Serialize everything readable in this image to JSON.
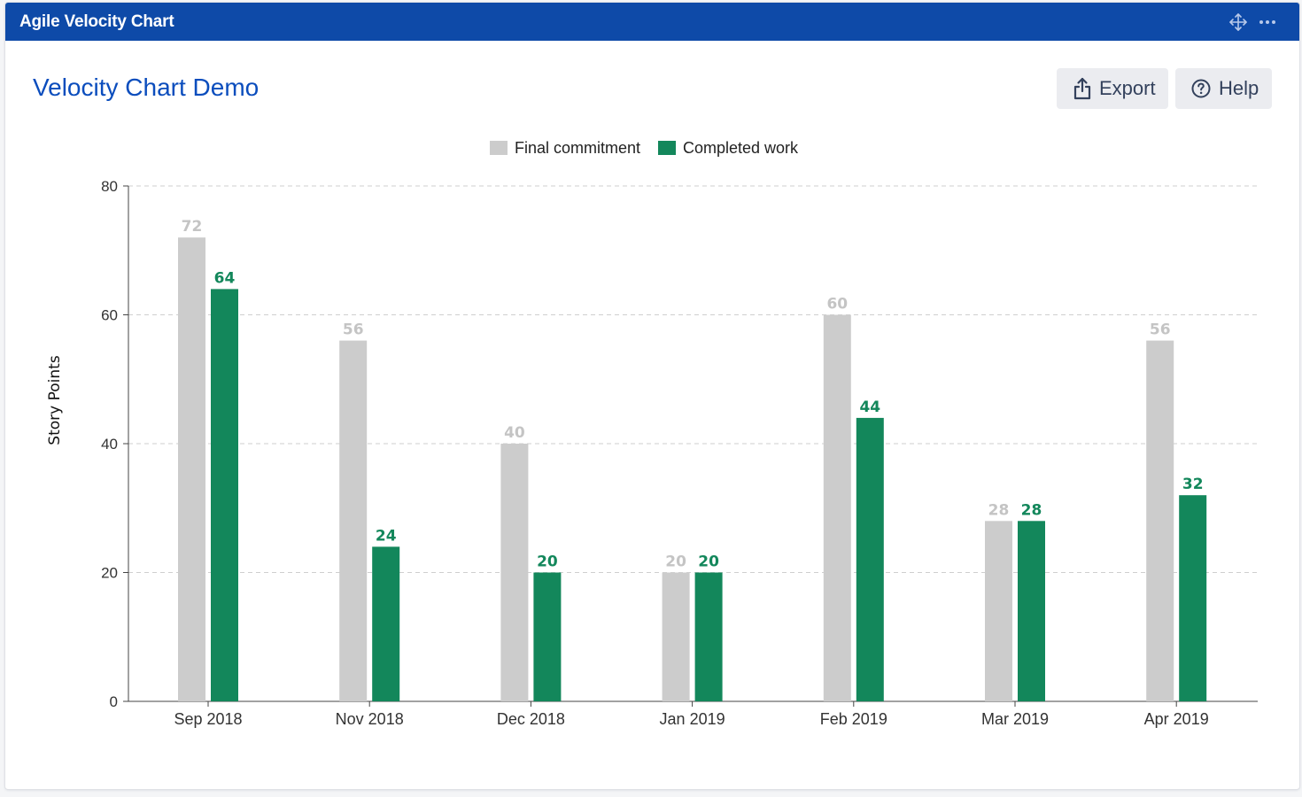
{
  "window": {
    "title": "Agile Velocity Chart"
  },
  "header": {
    "page_title": "Velocity Chart Demo",
    "export_label": "Export",
    "help_label": "Help",
    "export_icon": "share-icon",
    "help_icon": "help-circle-icon",
    "move_icon": "move-icon",
    "more_icon": "more-icon"
  },
  "chart_data": {
    "type": "bar",
    "categories": [
      "Sep 2018",
      "Nov 2018",
      "Dec 2018",
      "Jan 2019",
      "Feb 2019",
      "Mar 2019",
      "Apr 2019"
    ],
    "series": [
      {
        "name": "Final commitment",
        "values": [
          72,
          56,
          40,
          20,
          60,
          28,
          56
        ],
        "color": "#cccccc",
        "label_color": "#c4c4c4"
      },
      {
        "name": "Completed work",
        "values": [
          64,
          24,
          20,
          20,
          44,
          28,
          32
        ],
        "color": "#13875b",
        "label_color": "#13875b"
      }
    ],
    "ylabel": "Story Points",
    "xlabel": "",
    "ylim": [
      0,
      80
    ],
    "yticks": [
      0,
      20,
      40,
      60,
      80
    ],
    "grid": true,
    "legend_position": "top-center"
  }
}
